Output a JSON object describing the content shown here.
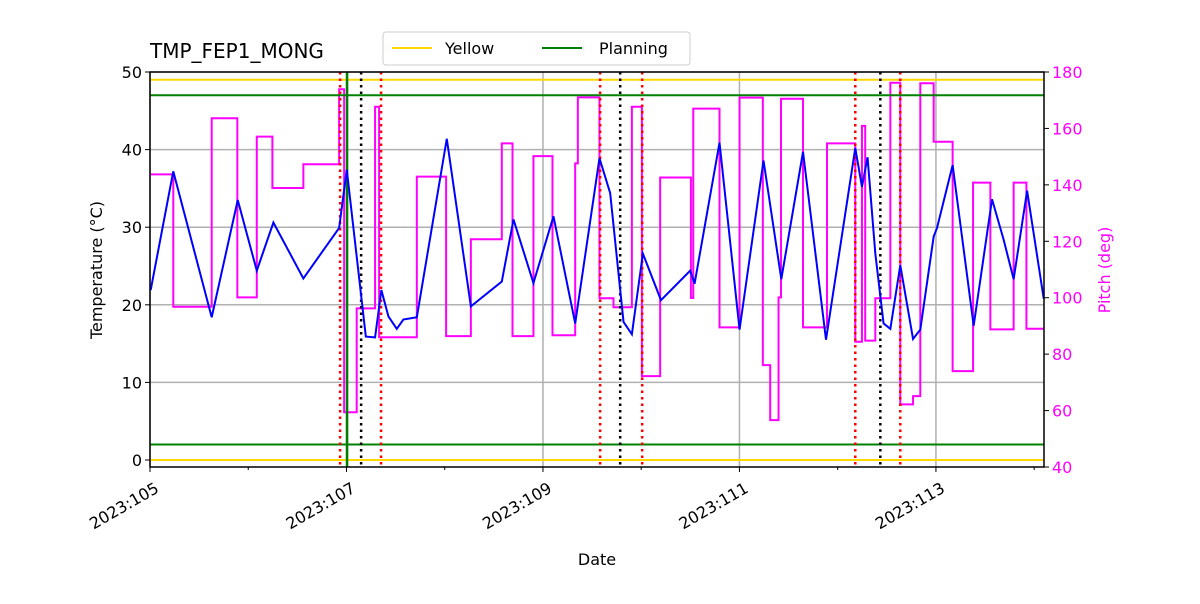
{
  "chart_data": {
    "type": "line",
    "title": "TMP_FEP1_MONG",
    "xlabel": "Date",
    "ylabel": "Temperature (°C)",
    "y2label": "Pitch (deg)",
    "xlim": [
      105.0,
      114.1
    ],
    "ylim": [
      -0.9,
      50
    ],
    "y2lim": [
      40,
      180
    ],
    "x_ticks": [
      105,
      107,
      109,
      111,
      113
    ],
    "x_tick_labels": [
      "2023:105",
      "2023:107",
      "2023:109",
      "2023:111",
      "2023:113"
    ],
    "x_minor_ticks": [
      106,
      108,
      110,
      112,
      114
    ],
    "y_ticks": [
      0,
      10,
      20,
      30,
      40,
      50
    ],
    "y2_ticks": [
      40,
      60,
      80,
      100,
      120,
      140,
      160,
      180
    ],
    "grid": true,
    "legend": {
      "placement": "top-center",
      "entries": [
        {
          "label": "Yellow",
          "color": "#ffd700"
        },
        {
          "label": "Planning",
          "color": "#008000"
        }
      ]
    },
    "limits": {
      "yellow": {
        "low": 0,
        "high": 49,
        "color": "#ffd700"
      },
      "planning": {
        "low": 2,
        "high": 47,
        "color": "#008000"
      }
    },
    "vertical_lines": {
      "red_dotted": [
        106.935,
        107.352,
        109.582,
        110.01,
        112.179,
        112.637
      ],
      "black_dotted": [
        107.149,
        109.786,
        112.434
      ],
      "green_solid": [
        107.006
      ]
    },
    "temperature": {
      "color": "#0000ff",
      "x": [
        105.007,
        105.237,
        105.628,
        105.893,
        106.087,
        106.256,
        106.561,
        106.925,
        107.003,
        107.197,
        107.291,
        107.355,
        107.427,
        107.512,
        107.579,
        107.716,
        108.021,
        108.266,
        108.581,
        108.7,
        108.903,
        109.107,
        109.328,
        109.575,
        109.684,
        109.82,
        109.905,
        110.017,
        110.201,
        110.499,
        110.543,
        110.797,
        111.001,
        111.245,
        111.426,
        111.647,
        111.881,
        112.179,
        112.247,
        112.304,
        112.383,
        112.467,
        112.536,
        112.637,
        112.767,
        112.841,
        112.977,
        113.011,
        113.17,
        113.384,
        113.571,
        113.689,
        113.791,
        113.928,
        114.097
      ],
      "y": [
        21.9,
        37.2,
        18.4,
        33.5,
        24.4,
        30.6,
        23.4,
        29.9,
        37.4,
        15.9,
        15.8,
        21.9,
        18.5,
        16.9,
        18.1,
        18.4,
        41.4,
        19.8,
        23.0,
        31.0,
        22.8,
        31.4,
        17.6,
        38.9,
        34.4,
        17.8,
        16.2,
        26.6,
        20.6,
        24.4,
        22.7,
        40.9,
        16.8,
        38.6,
        23.3,
        39.7,
        15.5,
        40.2,
        35.2,
        39.0,
        26.6,
        17.6,
        16.9,
        25.1,
        15.6,
        16.8,
        28.8,
        29.9,
        38.0,
        17.3,
        33.6,
        28.4,
        23.3,
        34.7,
        20.8
      ]
    },
    "pitch": {
      "color": "#ff00ff",
      "step_x": [
        105.0,
        105.237,
        105.628,
        105.889,
        106.087,
        106.246,
        106.561,
        106.925,
        106.976,
        107.104,
        107.291,
        107.332,
        107.716,
        108.014,
        108.266,
        108.581,
        108.69,
        108.903,
        109.097,
        109.328,
        109.355,
        109.575,
        109.718,
        109.905,
        110.007,
        110.193,
        110.506,
        110.53,
        110.797,
        111.001,
        111.238,
        111.313,
        111.398,
        111.423,
        111.647,
        111.891,
        112.179,
        112.247,
        112.28,
        112.383,
        112.536,
        112.637,
        112.767,
        112.841,
        112.977,
        113.17,
        113.378,
        113.554,
        113.791,
        113.921
      ],
      "step_y": [
        143.7,
        96.8,
        163.6,
        100.1,
        157.1,
        138.9,
        147.3,
        173.9,
        59.4,
        96.2,
        167.7,
        86.0,
        142.9,
        86.4,
        120.7,
        154.7,
        86.4,
        150.2,
        86.7,
        147.6,
        171.0,
        99.8,
        96.6,
        167.7,
        72.2,
        142.6,
        99.9,
        167.0,
        89.5,
        170.9,
        76.1,
        56.6,
        100.1,
        170.5,
        89.5,
        154.7,
        84.4,
        160.9,
        84.8,
        99.8,
        176.2,
        62.2,
        65.1,
        176.0,
        155.3,
        74.0,
        140.8,
        88.8,
        140.8,
        89.0
      ]
    }
  }
}
